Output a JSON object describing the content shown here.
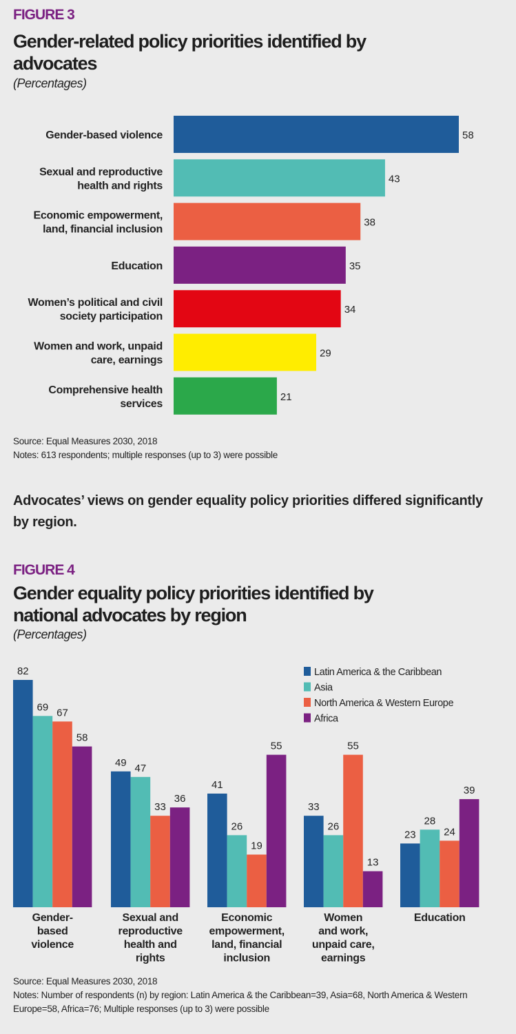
{
  "figure3": {
    "label": "FIGURE 3",
    "title": "Gender-related policy priorities identified by advocates",
    "subtitle": "(Percentages)",
    "source": "Source: Equal Measures 2030, 2018",
    "notes": "Notes: 613 respondents; multiple responses (up to 3) were possible"
  },
  "lead_text": "Advocates’ views on gender equality policy priorities differed significantly by region.",
  "figure4": {
    "label": "FIGURE 4",
    "title": "Gender equality policy priorities identified by national advocates by region",
    "subtitle": "(Percentages)",
    "source": "Source: Equal Measures 2030, 2018",
    "notes": "Notes: Number of respondents (n) by region: Latin America & the Caribbean=39, Asia=68, North America & Western Europe=58, Africa=76; Multiple responses (up to 3) were possible"
  },
  "chart_data": [
    {
      "type": "bar",
      "orientation": "horizontal",
      "categories": [
        [
          "Gender-based violence"
        ],
        [
          "Sexual and reproductive",
          "health and rights"
        ],
        [
          "Economic empowerment,",
          "land, financial inclusion"
        ],
        [
          "Education"
        ],
        [
          "Women’s political and civil",
          "society participation"
        ],
        [
          "Women and work, unpaid",
          "care, earnings"
        ],
        [
          "Comprehensive health",
          "services"
        ]
      ],
      "values": [
        58,
        43,
        38,
        35,
        34,
        29,
        21
      ],
      "colors": [
        "#1f5c9a",
        "#52bcb4",
        "#eb5f43",
        "#7b2182",
        "#e30613",
        "#ffed00",
        "#2ba84a"
      ],
      "data_labels": true,
      "grid": false,
      "xlim": [
        0,
        58
      ]
    },
    {
      "type": "bar",
      "orientation": "vertical",
      "categories": [
        [
          "Gender-",
          "based",
          "violence"
        ],
        [
          "Sexual and",
          "reproductive",
          "health and",
          "rights"
        ],
        [
          "Economic",
          "empowerment,",
          "land, financial",
          "inclusion"
        ],
        [
          "Women",
          "and work,",
          "unpaid care,",
          "earnings"
        ],
        [
          "Education"
        ]
      ],
      "series": [
        {
          "name": "Latin America & the Caribbean",
          "color": "#1f5c9a",
          "values": [
            82,
            49,
            41,
            33,
            23
          ]
        },
        {
          "name": "Asia",
          "color": "#52bcb4",
          "values": [
            69,
            47,
            26,
            26,
            28
          ]
        },
        {
          "name": "North America & Western Europe",
          "color": "#eb5f43",
          "values": [
            67,
            33,
            19,
            55,
            24
          ]
        },
        {
          "name": "Africa",
          "color": "#7b2182",
          "values": [
            58,
            36,
            55,
            13,
            39
          ]
        }
      ],
      "data_labels": true,
      "grid": false,
      "legend": "top-right",
      "ylim": [
        0,
        82
      ]
    }
  ]
}
